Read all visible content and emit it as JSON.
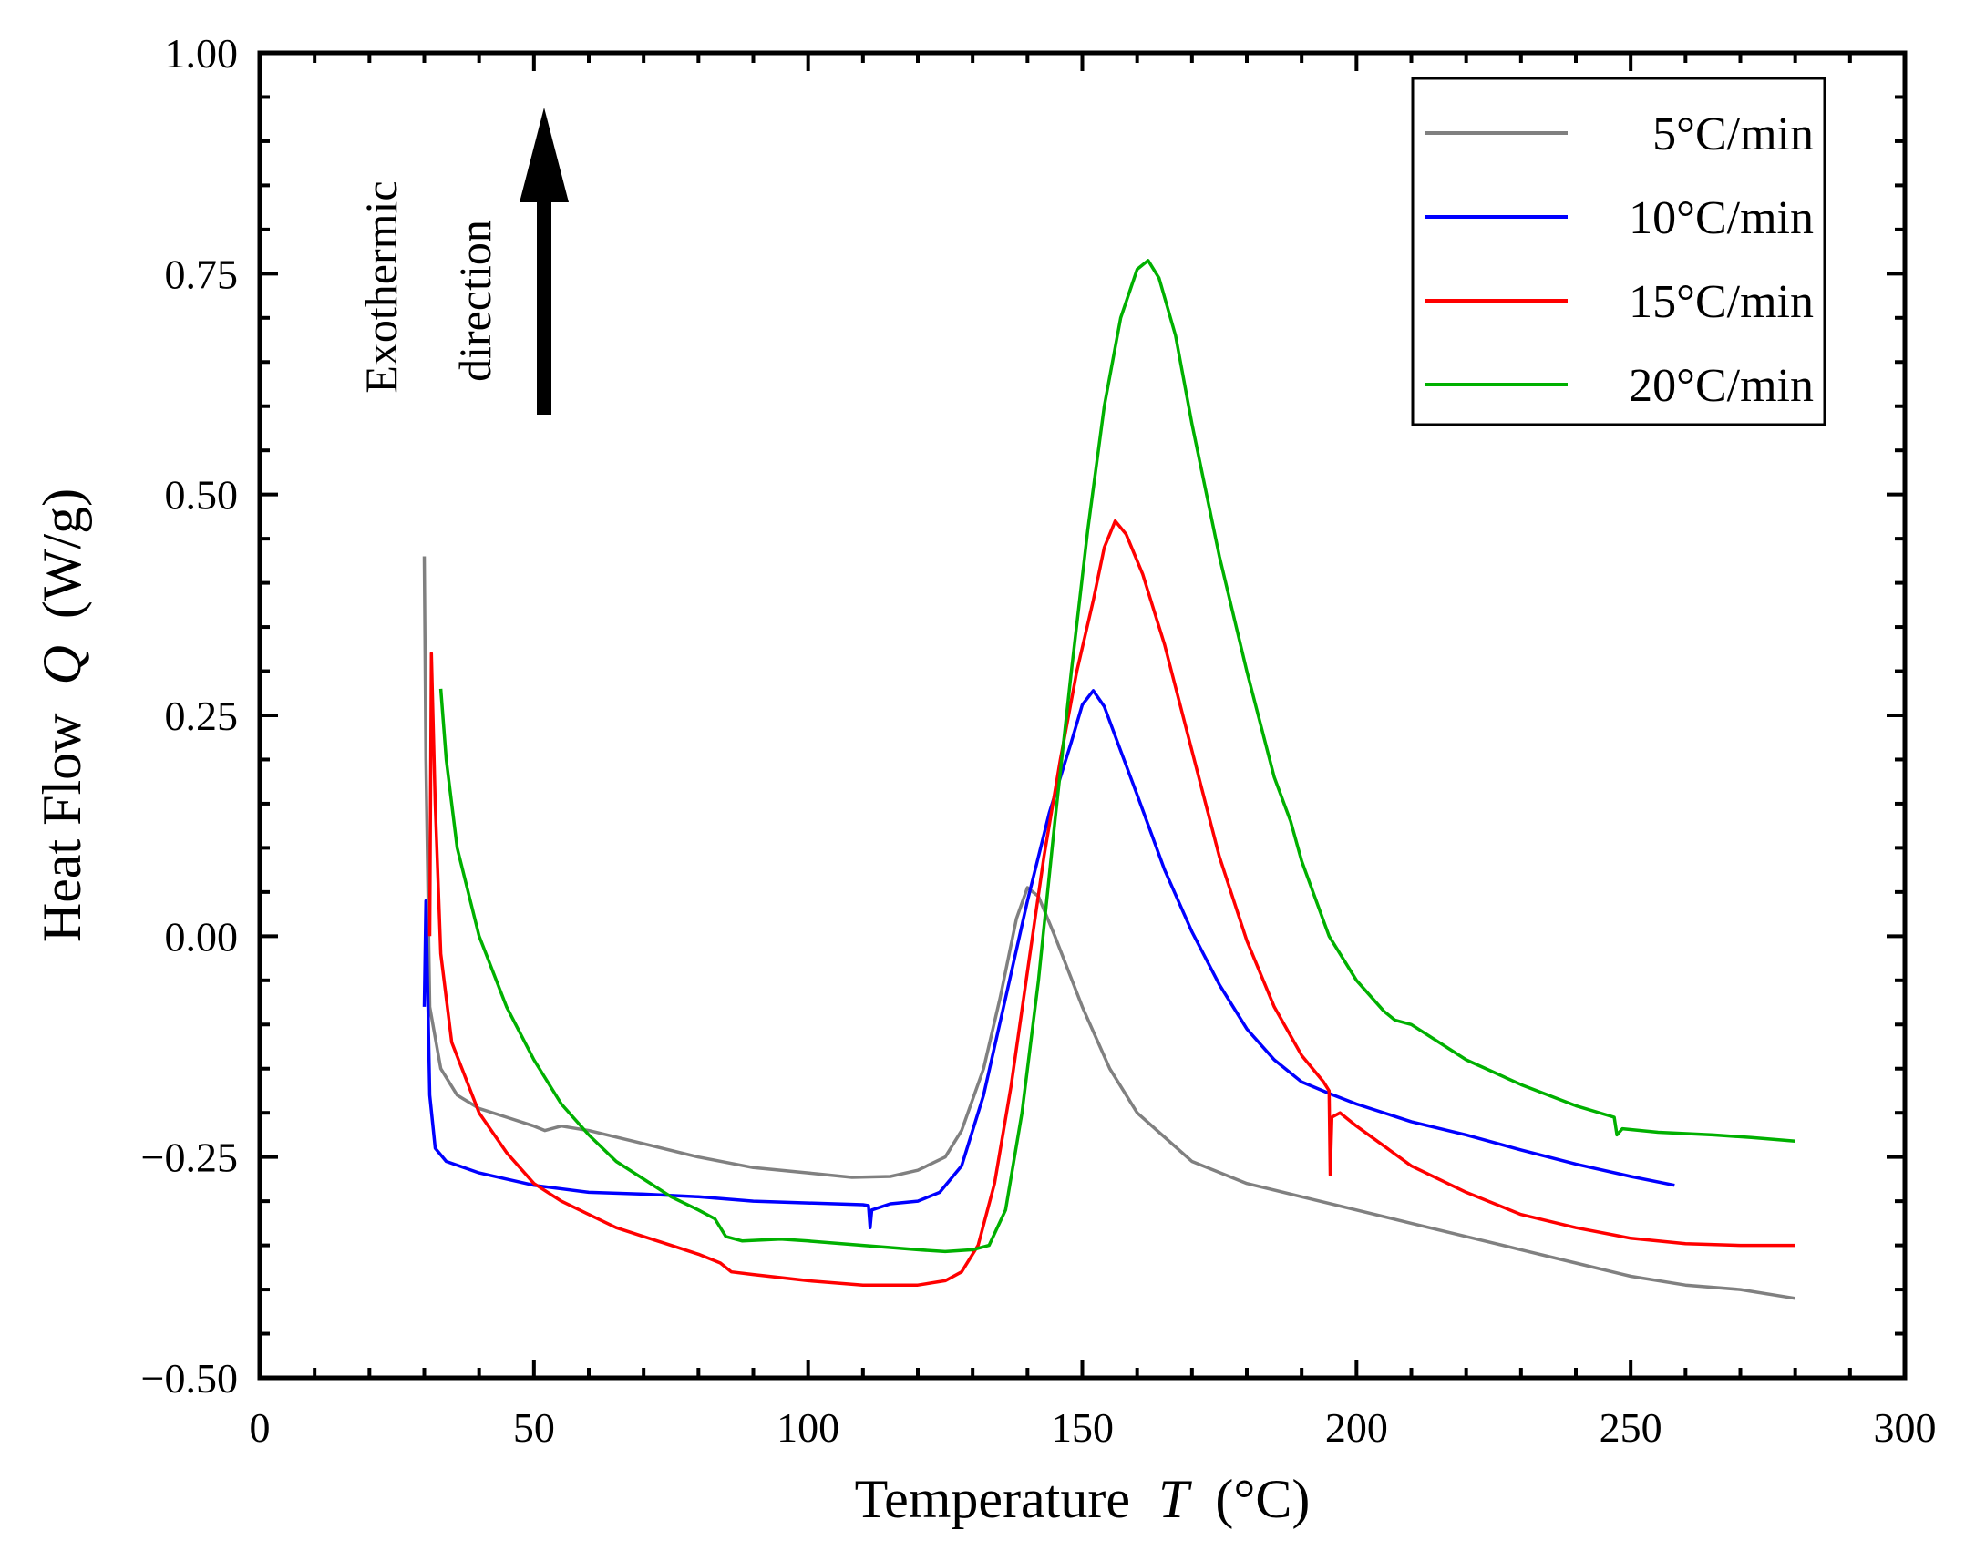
{
  "chart_data": {
    "type": "line",
    "title": "",
    "xlabel": "Temperature",
    "xlabel_symbol": "T",
    "xlabel_unit": "(°C)",
    "ylabel": "Heat Flow",
    "ylabel_symbol": "Q",
    "ylabel_unit": "(W/g)",
    "xlim": [
      0,
      300
    ],
    "ylim": [
      -0.5,
      1.0
    ],
    "xticks": [
      0,
      50,
      100,
      150,
      200,
      250,
      300
    ],
    "xtick_labels": [
      "0",
      "50",
      "100",
      "150",
      "200",
      "250",
      "300"
    ],
    "yticks": [
      -0.5,
      -0.25,
      0.0,
      0.25,
      0.5,
      0.75,
      1.0
    ],
    "ytick_labels": [
      "−0.50",
      "−0.25",
      "0.00",
      "0.25",
      "0.50",
      "0.75",
      "1.00"
    ],
    "grid": false,
    "legend_position": "top-right",
    "annotation": {
      "line1": "Exothermic",
      "line2": "direction",
      "arrow": "up"
    },
    "series": [
      {
        "name": "5°C/min",
        "color": "#808080",
        "points": [
          [
            30,
            0.43
          ],
          [
            30.3,
            0.2
          ],
          [
            31,
            -0.08
          ],
          [
            33,
            -0.15
          ],
          [
            36,
            -0.18
          ],
          [
            40,
            -0.195
          ],
          [
            45,
            -0.205
          ],
          [
            50,
            -0.215
          ],
          [
            52,
            -0.22
          ],
          [
            55,
            -0.215
          ],
          [
            60,
            -0.22
          ],
          [
            70,
            -0.235
          ],
          [
            80,
            -0.25
          ],
          [
            90,
            -0.262
          ],
          [
            100,
            -0.268
          ],
          [
            108,
            -0.273
          ],
          [
            115,
            -0.272
          ],
          [
            120,
            -0.265
          ],
          [
            125,
            -0.25
          ],
          [
            128,
            -0.22
          ],
          [
            132,
            -0.15
          ],
          [
            135,
            -0.07
          ],
          [
            138,
            0.02
          ],
          [
            140,
            0.055
          ],
          [
            142,
            0.045
          ],
          [
            145,
            0.0
          ],
          [
            150,
            -0.08
          ],
          [
            155,
            -0.15
          ],
          [
            160,
            -0.2
          ],
          [
            170,
            -0.255
          ],
          [
            180,
            -0.28
          ],
          [
            190,
            -0.295
          ],
          [
            200,
            -0.31
          ],
          [
            210,
            -0.325
          ],
          [
            220,
            -0.34
          ],
          [
            230,
            -0.355
          ],
          [
            240,
            -0.37
          ],
          [
            250,
            -0.385
          ],
          [
            260,
            -0.395
          ],
          [
            270,
            -0.4
          ],
          [
            280,
            -0.41
          ]
        ]
      },
      {
        "name": "10°C/min",
        "color": "#0000ff",
        "points": [
          [
            30,
            -0.08
          ],
          [
            30.3,
            0.04
          ],
          [
            31,
            -0.18
          ],
          [
            32,
            -0.24
          ],
          [
            34,
            -0.255
          ],
          [
            40,
            -0.268
          ],
          [
            50,
            -0.282
          ],
          [
            60,
            -0.29
          ],
          [
            70,
            -0.292
          ],
          [
            80,
            -0.295
          ],
          [
            90,
            -0.3
          ],
          [
            100,
            -0.302
          ],
          [
            110,
            -0.304
          ],
          [
            111,
            -0.305
          ],
          [
            111.3,
            -0.33
          ],
          [
            111.6,
            -0.31
          ],
          [
            115,
            -0.303
          ],
          [
            120,
            -0.3
          ],
          [
            124,
            -0.29
          ],
          [
            128,
            -0.26
          ],
          [
            132,
            -0.18
          ],
          [
            136,
            -0.07
          ],
          [
            140,
            0.04
          ],
          [
            144,
            0.14
          ],
          [
            148,
            0.22
          ],
          [
            150,
            0.262
          ],
          [
            152,
            0.278
          ],
          [
            154,
            0.26
          ],
          [
            157,
            0.21
          ],
          [
            160,
            0.16
          ],
          [
            165,
            0.075
          ],
          [
            170,
            0.005
          ],
          [
            175,
            -0.055
          ],
          [
            180,
            -0.105
          ],
          [
            185,
            -0.14
          ],
          [
            190,
            -0.165
          ],
          [
            195,
            -0.178
          ],
          [
            200,
            -0.19
          ],
          [
            210,
            -0.21
          ],
          [
            220,
            -0.225
          ],
          [
            230,
            -0.242
          ],
          [
            240,
            -0.258
          ],
          [
            250,
            -0.272
          ],
          [
            258,
            -0.282
          ]
        ]
      },
      {
        "name": "15°C/min",
        "color": "#ff0000",
        "points": [
          [
            31,
            0.0
          ],
          [
            31.3,
            0.32
          ],
          [
            32,
            0.15
          ],
          [
            33,
            -0.02
          ],
          [
            35,
            -0.12
          ],
          [
            40,
            -0.2
          ],
          [
            45,
            -0.245
          ],
          [
            50,
            -0.28
          ],
          [
            55,
            -0.3
          ],
          [
            60,
            -0.315
          ],
          [
            65,
            -0.33
          ],
          [
            70,
            -0.34
          ],
          [
            75,
            -0.35
          ],
          [
            80,
            -0.36
          ],
          [
            84,
            -0.37
          ],
          [
            86,
            -0.38
          ],
          [
            90,
            -0.383
          ],
          [
            100,
            -0.39
          ],
          [
            110,
            -0.395
          ],
          [
            120,
            -0.395
          ],
          [
            125,
            -0.39
          ],
          [
            128,
            -0.38
          ],
          [
            131,
            -0.35
          ],
          [
            134,
            -0.28
          ],
          [
            137,
            -0.17
          ],
          [
            140,
            -0.04
          ],
          [
            143,
            0.09
          ],
          [
            146,
            0.2
          ],
          [
            149,
            0.3
          ],
          [
            152,
            0.38
          ],
          [
            154,
            0.44
          ],
          [
            156,
            0.47
          ],
          [
            158,
            0.455
          ],
          [
            161,
            0.41
          ],
          [
            165,
            0.33
          ],
          [
            170,
            0.21
          ],
          [
            175,
            0.09
          ],
          [
            180,
            -0.005
          ],
          [
            185,
            -0.08
          ],
          [
            190,
            -0.135
          ],
          [
            194,
            -0.165
          ],
          [
            195,
            -0.175
          ],
          [
            195.2,
            -0.27
          ],
          [
            195.5,
            -0.205
          ],
          [
            197,
            -0.2
          ],
          [
            200,
            -0.215
          ],
          [
            210,
            -0.26
          ],
          [
            220,
            -0.29
          ],
          [
            230,
            -0.315
          ],
          [
            240,
            -0.33
          ],
          [
            250,
            -0.342
          ],
          [
            260,
            -0.348
          ],
          [
            270,
            -0.35
          ],
          [
            280,
            -0.35
          ]
        ]
      },
      {
        "name": "20°C/min",
        "color": "#00b000",
        "points": [
          [
            33,
            0.28
          ],
          [
            34,
            0.2
          ],
          [
            36,
            0.1
          ],
          [
            40,
            0.0
          ],
          [
            45,
            -0.08
          ],
          [
            50,
            -0.14
          ],
          [
            55,
            -0.19
          ],
          [
            60,
            -0.225
          ],
          [
            65,
            -0.255
          ],
          [
            70,
            -0.275
          ],
          [
            75,
            -0.295
          ],
          [
            80,
            -0.31
          ],
          [
            83,
            -0.32
          ],
          [
            85,
            -0.34
          ],
          [
            88,
            -0.345
          ],
          [
            95,
            -0.343
          ],
          [
            100,
            -0.345
          ],
          [
            110,
            -0.35
          ],
          [
            120,
            -0.355
          ],
          [
            125,
            -0.357
          ],
          [
            130,
            -0.355
          ],
          [
            133,
            -0.35
          ],
          [
            136,
            -0.31
          ],
          [
            139,
            -0.2
          ],
          [
            142,
            -0.05
          ],
          [
            145,
            0.13
          ],
          [
            148,
            0.3
          ],
          [
            151,
            0.46
          ],
          [
            154,
            0.6
          ],
          [
            157,
            0.7
          ],
          [
            160,
            0.755
          ],
          [
            162,
            0.765
          ],
          [
            164,
            0.745
          ],
          [
            167,
            0.68
          ],
          [
            170,
            0.58
          ],
          [
            175,
            0.43
          ],
          [
            180,
            0.3
          ],
          [
            185,
            0.18
          ],
          [
            188,
            0.13
          ],
          [
            190,
            0.085
          ],
          [
            195,
            0.0
          ],
          [
            200,
            -0.05
          ],
          [
            205,
            -0.085
          ],
          [
            207,
            -0.095
          ],
          [
            210,
            -0.1
          ],
          [
            220,
            -0.14
          ],
          [
            230,
            -0.168
          ],
          [
            240,
            -0.192
          ],
          [
            247,
            -0.205
          ],
          [
            247.5,
            -0.225
          ],
          [
            248.5,
            -0.218
          ],
          [
            255,
            -0.222
          ],
          [
            265,
            -0.225
          ],
          [
            272,
            -0.228
          ],
          [
            280,
            -0.232
          ]
        ]
      }
    ]
  }
}
